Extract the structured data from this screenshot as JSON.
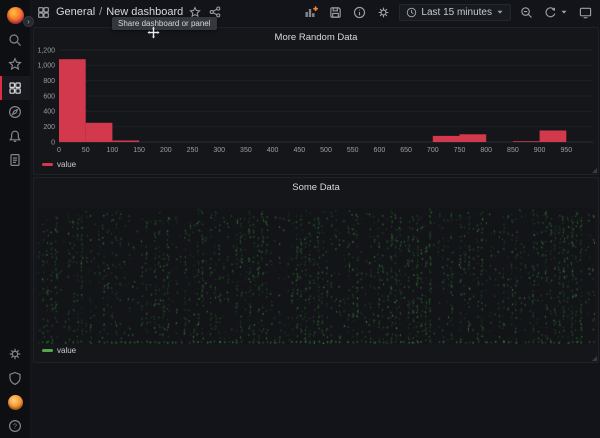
{
  "sidebar": {
    "logo_icon": "grafana-logo",
    "top_icons": [
      "search",
      "star",
      "dashboards",
      "explore",
      "alerting",
      "document"
    ],
    "active_item": "dashboards",
    "bottom_icons": [
      "configuration-gear",
      "server-admin-shield",
      "user-avatar",
      "help-question"
    ]
  },
  "navbar": {
    "breadcrumb": {
      "icon": "apps-grid",
      "folder": "General",
      "separator": "/",
      "dashboard": "New dashboard",
      "trailing_icons": [
        "star",
        "share"
      ]
    },
    "right_icons": [
      "add-panel",
      "save-dashboard",
      "info-circle",
      "dashboard-settings-gear",
      "zoom-out",
      "refresh",
      "caret-down",
      "cycle-view-monitor"
    ],
    "time_picker": {
      "icon": "clock",
      "label": "Last 15 minutes",
      "caret": "caret-down"
    }
  },
  "tooltip": {
    "text": "Share dashboard or panel"
  },
  "cursor": "move-crosshair",
  "panels": [
    {
      "title": "More Random Data",
      "legend": {
        "label": "value",
        "color": "#d3394d"
      }
    },
    {
      "title": "Some Data",
      "legend": {
        "label": "value",
        "color": "#56a64b"
      }
    }
  ],
  "colors": {
    "page_background": "#111217",
    "panel_background": "#141619",
    "accent_orange": "#ff8226",
    "active_item_red": "#e02f44",
    "bar_red": "#d3394d",
    "noise_green": "#4f8a42",
    "text_primary": "#d8d9da",
    "text_secondary": "#9aa0a8"
  },
  "chart_data": [
    {
      "type": "bar",
      "title": "More Random Data",
      "series_name": "value",
      "color": "#d3394d",
      "bin_width": 50,
      "xlim": [
        0,
        1000
      ],
      "ylim": [
        0,
        1200
      ],
      "x_ticks": [
        0,
        50,
        100,
        150,
        200,
        250,
        300,
        350,
        400,
        450,
        500,
        550,
        600,
        650,
        700,
        750,
        800,
        850,
        900,
        950
      ],
      "y_ticks": [
        0,
        200,
        400,
        600,
        800,
        1000,
        1200
      ],
      "y_tick_labels": [
        "0",
        "200",
        "400",
        "600",
        "800",
        "1,000",
        "1,200"
      ],
      "bins": [
        {
          "x0": 0,
          "x1": 50,
          "value": 1080
        },
        {
          "x0": 50,
          "x1": 100,
          "value": 250
        },
        {
          "x0": 100,
          "x1": 150,
          "value": 20
        },
        {
          "x0": 700,
          "x1": 750,
          "value": 80
        },
        {
          "x0": 750,
          "x1": 800,
          "value": 100
        },
        {
          "x0": 850,
          "x1": 900,
          "value": 5
        },
        {
          "x0": 900,
          "x1": 950,
          "value": 150
        }
      ],
      "grid": true,
      "legend_position": "bottom-left"
    },
    {
      "type": "scatter",
      "title": "Some Data",
      "series_name": "value",
      "color": "#4f8a42",
      "appearance": "extremely dense random green points forming vertical dotted columns filling the whole plot",
      "x_axis_labels_visible": false,
      "y_axis_labels_visible": false,
      "legend_position": "bottom-left"
    }
  ]
}
